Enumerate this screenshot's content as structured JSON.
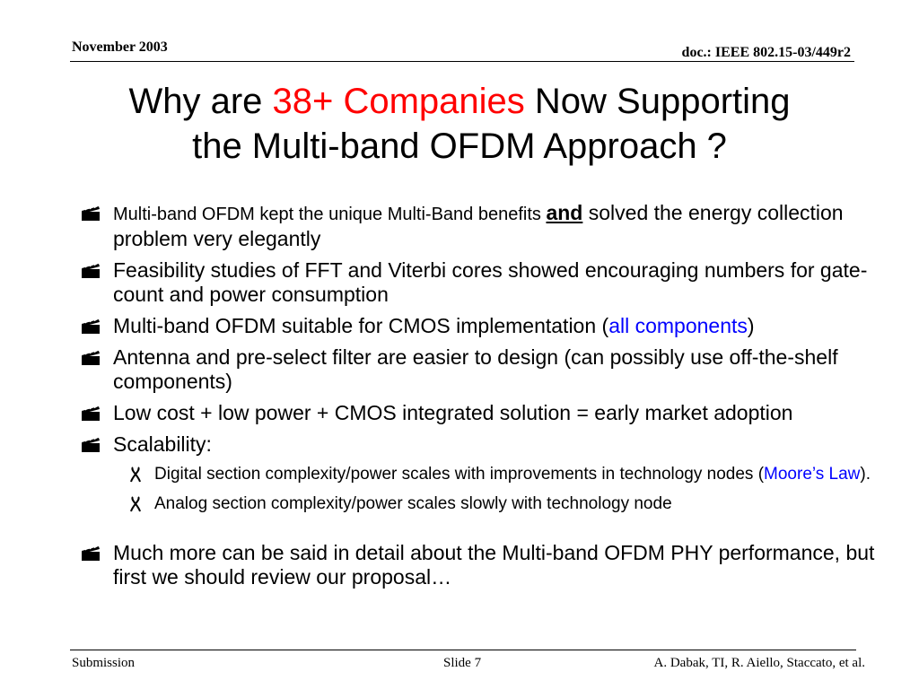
{
  "header": {
    "date": "November 2003",
    "doc_id": "doc.: IEEE 802.15-03/449r2"
  },
  "title": {
    "part1": "Why are ",
    "highlight": "38+ Companies",
    "part2": " Now Supporting",
    "line2": "the Multi-band OFDM Approach ?"
  },
  "bullets": {
    "b1": {
      "text_a": "Multi-band OFDM kept the unique Multi-Band benefits ",
      "emph": "and",
      "text_b": " solved the energy collection problem very elegantly"
    },
    "b2": {
      "text": "Feasibility studies of FFT and Viterbi cores showed encouraging numbers for gate-count and power consumption"
    },
    "b3": {
      "text_a": "Multi-band OFDM suitable for CMOS implementation (",
      "link": "all components",
      "text_b": ")"
    },
    "b4": {
      "text": "Antenna and pre-select filter are easier to design (can possibly use off-the-shelf components)"
    },
    "b5": {
      "text": "Low cost + low power + CMOS integrated solution = early market adoption"
    },
    "b6": {
      "text": "Scalability:"
    },
    "s1": {
      "text_a": "Digital section complexity/power scales with improvements in technology nodes (",
      "link": "Moore’s Law",
      "text_b": ")."
    },
    "s2": {
      "text": "Analog section complexity/power scales slowly with technology node"
    },
    "b7": {
      "text": "Much more can be said in detail about the Multi-band OFDM PHY performance, but first we should review our proposal…"
    }
  },
  "colors": {
    "highlight": "#ff0000",
    "link": "#0000ff"
  },
  "icons": {
    "bullet": "clapperboard-icon",
    "sub_bullet": "ribbon-icon"
  },
  "footer": {
    "left": "Submission",
    "center": "Slide 7",
    "right": "A. Dabak, TI, R. Aiello, Staccato, et al."
  }
}
